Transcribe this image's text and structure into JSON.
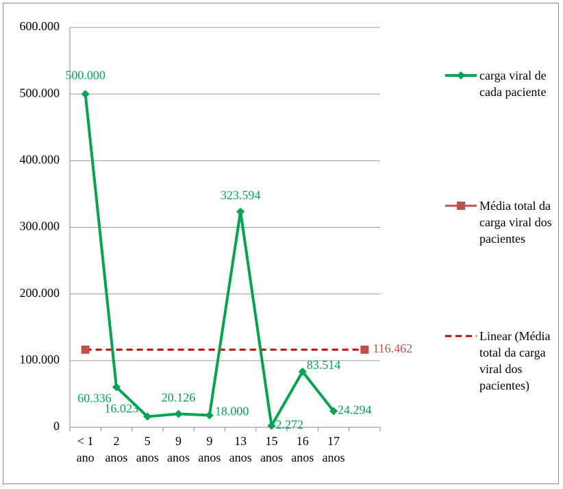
{
  "chart_data": {
    "type": "line",
    "categories": [
      "< 1 ano",
      "2 anos",
      "5 anos",
      "9 anos",
      "9 anos",
      "13 anos",
      "15 anos",
      "16 anos",
      "17 anos",
      null
    ],
    "series": [
      {
        "name": "carga viral de cada paciente",
        "color": "#00a550",
        "marker": "diamond",
        "line": "solid",
        "values": [
          500000,
          60336,
          16023,
          20126,
          18000,
          323594,
          2272,
          83514,
          24294,
          null
        ],
        "value_labels": [
          "500.000",
          "60.336",
          "16.023",
          "20.126",
          "18.000",
          "323.594",
          "2.272",
          "83.514",
          "24.294",
          null
        ]
      },
      {
        "name": "Média total da carga viral dos pacientes",
        "color": "#c0504d",
        "marker": "square",
        "line": "none",
        "values": [
          116462,
          null,
          null,
          null,
          null,
          null,
          null,
          null,
          null,
          116462
        ],
        "value_labels": [
          null,
          null,
          null,
          null,
          null,
          null,
          null,
          null,
          null,
          "116.462"
        ]
      },
      {
        "name": "Linear (Média total da carga viral dos pacientes)",
        "color": "#c00000",
        "marker": "none",
        "line": "dashed",
        "values": [
          116462,
          116462,
          116462,
          116462,
          116462,
          116462,
          116462,
          116462,
          116462,
          116462
        ]
      }
    ],
    "ylim": [
      0,
      600000
    ],
    "yticks": [
      0,
      {
        "value": 100000,
        "label": "100.000"
      },
      {
        "value": 200000,
        "label": "200.000"
      },
      {
        "value": 300000,
        "label": "300.000"
      },
      {
        "value": 400000,
        "label": "400.000"
      },
      {
        "value": 500000,
        "label": "500.000"
      },
      {
        "value": 600000,
        "label": "600.000"
      }
    ],
    "grid": true,
    "legend": "right"
  }
}
